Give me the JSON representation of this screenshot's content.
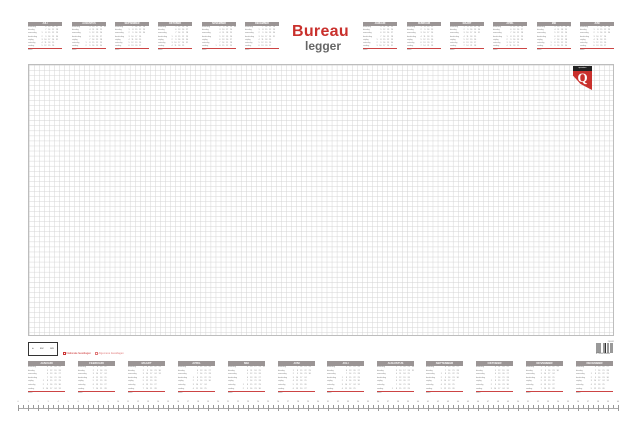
{
  "title": {
    "line1": "Bureau",
    "line2": "legger"
  },
  "brand": {
    "logo_letter": "Q",
    "logo_text": "quantore",
    "accent": "#c9302c"
  },
  "day_names": [
    "maandag",
    "dinsdag",
    "woensdag",
    "donderdag",
    "vrijdag",
    "zaterdag",
    "zondag"
  ],
  "week_label": "week",
  "top_left_months": [
    {
      "name": "Juli",
      "offset": 2,
      "days": 31
    },
    {
      "name": "Augustus",
      "offset": 5,
      "days": 31
    },
    {
      "name": "September",
      "offset": 1,
      "days": 30
    },
    {
      "name": "Oktober",
      "offset": 3,
      "days": 31
    },
    {
      "name": "November",
      "offset": 6,
      "days": 30
    },
    {
      "name": "December",
      "offset": 1,
      "days": 31
    }
  ],
  "top_right_months": [
    {
      "name": "Januari",
      "offset": 4,
      "days": 31
    },
    {
      "name": "Februari",
      "offset": 0,
      "days": 28
    },
    {
      "name": "Maart",
      "offset": 0,
      "days": 31
    },
    {
      "name": "April",
      "offset": 3,
      "days": 30
    },
    {
      "name": "Mei",
      "offset": 5,
      "days": 31
    },
    {
      "name": "Juni",
      "offset": 1,
      "days": 30
    }
  ],
  "bottom_months": [
    {
      "name": "Januari",
      "offset": 4,
      "days": 31
    },
    {
      "name": "Februari",
      "offset": 0,
      "days": 28
    },
    {
      "name": "Maart",
      "offset": 0,
      "days": 31
    },
    {
      "name": "April",
      "offset": 3,
      "days": 30
    },
    {
      "name": "Mei",
      "offset": 5,
      "days": 31
    },
    {
      "name": "Juni",
      "offset": 1,
      "days": 30
    },
    {
      "name": "Juli",
      "offset": 3,
      "days": 31
    },
    {
      "name": "Augustus",
      "offset": 6,
      "days": 31
    },
    {
      "name": "September",
      "offset": 2,
      "days": 30
    },
    {
      "name": "Oktober",
      "offset": 4,
      "days": 31
    },
    {
      "name": "November",
      "offset": 0,
      "days": 30
    },
    {
      "name": "December",
      "offset": 2,
      "days": 31
    }
  ],
  "legend": {
    "item1": "Nationale feestdagen",
    "item2": "Algemene feestdagen"
  },
  "fsc": {
    "label": "FSC",
    "sub": "MIX"
  },
  "barcode": {
    "number": "8 710968 000000",
    "code": "2300052"
  },
  "ruler": {
    "start": 0,
    "end": 60,
    "unit": "cm"
  }
}
